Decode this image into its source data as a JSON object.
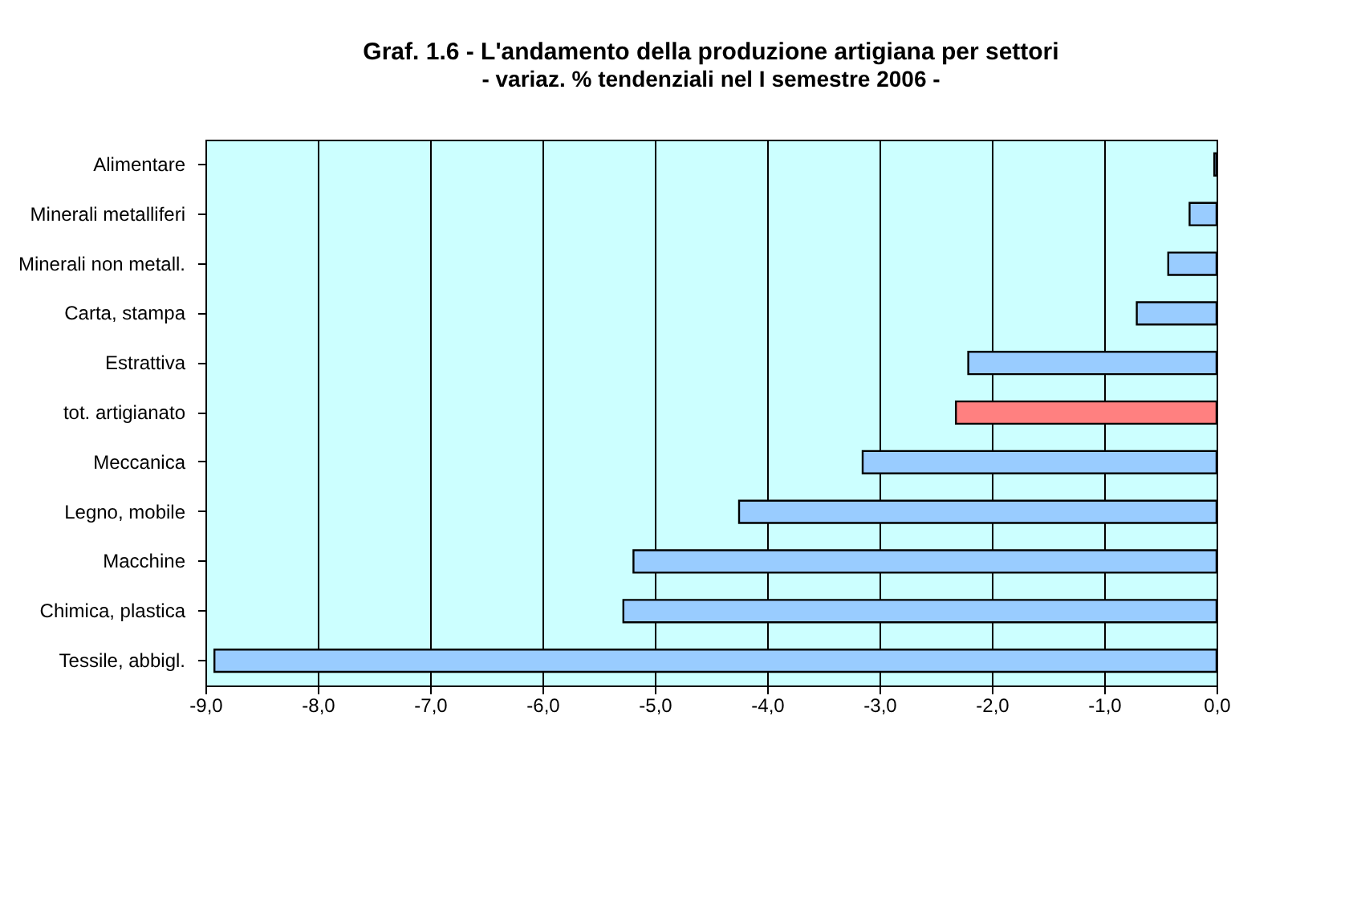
{
  "chart_data": {
    "type": "bar",
    "orientation": "horizontal",
    "title": "Graf. 1.6 - L'andamento della produzione artigiana per settori",
    "subtitle": "- variaz. % tendenziali nel I semestre 2006 -",
    "categories": [
      "Alimentare",
      "Minerali metalliferi",
      "Minerali non metall.",
      "Carta, stampa",
      "Estrattiva",
      "tot. artigianato",
      "Meccanica",
      "Legno, mobile",
      "Macchine",
      "Chimica, plastica",
      "Tessile, abbigl."
    ],
    "values": [
      -0.02,
      -0.24,
      -0.43,
      -0.71,
      -2.21,
      -2.32,
      -3.15,
      -4.25,
      -5.19,
      -5.28,
      -8.92
    ],
    "colors": [
      "#99ccff",
      "#99ccff",
      "#99ccff",
      "#99ccff",
      "#99ccff",
      "#ff8080",
      "#99ccff",
      "#99ccff",
      "#99ccff",
      "#99ccff",
      "#99ccff"
    ],
    "xlim": [
      -9,
      0
    ],
    "xticks": [
      {
        "value": -9,
        "label": "-9,0"
      },
      {
        "value": -8,
        "label": "-8,0"
      },
      {
        "value": -7,
        "label": "-7,0"
      },
      {
        "value": -6,
        "label": "-6,0"
      },
      {
        "value": -5,
        "label": "-5,0"
      },
      {
        "value": -4,
        "label": "-4,0"
      },
      {
        "value": -3,
        "label": "-3,0"
      },
      {
        "value": -2,
        "label": "-2,0"
      },
      {
        "value": -1,
        "label": "-1,0"
      },
      {
        "value": 0,
        "label": "0,0"
      }
    ],
    "grid": "x"
  }
}
